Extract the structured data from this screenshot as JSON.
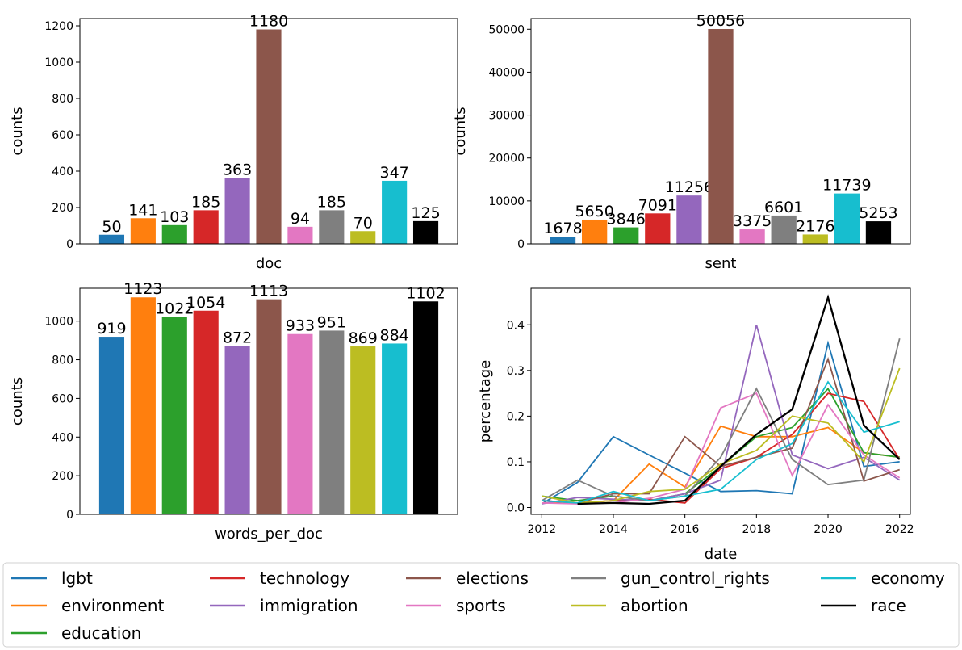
{
  "colors": {
    "lgbt": "#1f77b4",
    "environment": "#ff7f0e",
    "education": "#2ca02c",
    "technology": "#d62728",
    "immigration": "#9467bd",
    "elections": "#8c564b",
    "sports": "#e377c2",
    "gun_control_rights": "#7f7f7f",
    "abortion": "#bcbd22",
    "economy": "#17becf",
    "race": "#000000"
  },
  "chart_data": [
    {
      "type": "bar",
      "xlabel": "doc",
      "ylabel": "counts",
      "ylim": [
        0,
        1240
      ],
      "yticks": [
        0,
        200,
        400,
        600,
        800,
        1000,
        1200
      ],
      "categories": [
        "lgbt",
        "environment",
        "education",
        "technology",
        "immigration",
        "elections",
        "sports",
        "gun_control_rights",
        "abortion",
        "economy",
        "race"
      ],
      "values": [
        50,
        141,
        103,
        185,
        363,
        1180,
        94,
        185,
        70,
        347,
        125
      ],
      "grid": false
    },
    {
      "type": "bar",
      "xlabel": "sent",
      "ylabel": "counts",
      "ylim": [
        0,
        52500
      ],
      "yticks": [
        0,
        10000,
        20000,
        30000,
        40000,
        50000
      ],
      "categories": [
        "lgbt",
        "environment",
        "education",
        "technology",
        "immigration",
        "elections",
        "sports",
        "gun_control_rights",
        "abortion",
        "economy",
        "race"
      ],
      "values": [
        1678,
        5650,
        3846,
        7091,
        11256,
        50056,
        3375,
        6601,
        2176,
        11739,
        5253
      ],
      "grid": false
    },
    {
      "type": "bar",
      "xlabel": "words_per_doc",
      "ylabel": "counts",
      "ylim": [
        0,
        1170
      ],
      "yticks": [
        0,
        200,
        400,
        600,
        800,
        1000
      ],
      "categories": [
        "lgbt",
        "environment",
        "education",
        "technology",
        "immigration",
        "elections",
        "sports",
        "gun_control_rights",
        "abortion",
        "economy",
        "race"
      ],
      "values": [
        919,
        1123,
        1022,
        1054,
        872,
        1113,
        933,
        951,
        869,
        884,
        1102
      ],
      "grid": false
    },
    {
      "type": "line",
      "xlabel": "date",
      "ylabel": "percentage",
      "xlim": [
        2011.7,
        2022.3
      ],
      "ylim": [
        -0.015,
        0.48
      ],
      "xticks": [
        2012,
        2014,
        2016,
        2018,
        2020,
        2022
      ],
      "yticks": [
        0.0,
        0.1,
        0.2,
        0.3,
        0.4
      ],
      "grid": false,
      "series": [
        {
          "name": "lgbt",
          "x": [
            2012,
            2013,
            2014,
            2015,
            2016,
            2017,
            2018,
            2019,
            2020,
            2021,
            2022
          ],
          "y": [
            0.008,
            0.055,
            0.155,
            0.115,
            0.075,
            0.035,
            0.037,
            0.03,
            0.36,
            0.09,
            0.1
          ]
        },
        {
          "name": "environment",
          "x": [
            2012,
            2013,
            2014,
            2015,
            2016,
            2017,
            2018,
            2019,
            2020,
            2021,
            2022
          ],
          "y": [
            0.01,
            0.01,
            0.015,
            0.095,
            0.045,
            0.178,
            0.155,
            0.155,
            0.175,
            0.12,
            0.11
          ]
        },
        {
          "name": "education",
          "x": [
            2012,
            2013,
            2014,
            2015,
            2016,
            2017,
            2018,
            2019,
            2020,
            2021,
            2022
          ],
          "y": [
            0.025,
            0.015,
            0.025,
            0.015,
            0.03,
            0.09,
            0.155,
            0.175,
            0.26,
            0.12,
            0.11
          ]
        },
        {
          "name": "technology",
          "x": [
            2012,
            2013,
            2014,
            2015,
            2016,
            2017,
            2018,
            2019,
            2020,
            2021,
            2022
          ],
          "y": [
            0.015,
            0.01,
            0.015,
            0.018,
            0.01,
            0.085,
            0.11,
            0.16,
            0.25,
            0.232,
            0.105
          ]
        },
        {
          "name": "immigration",
          "x": [
            2012,
            2013,
            2014,
            2015,
            2016,
            2017,
            2018,
            2019,
            2020,
            2021,
            2022
          ],
          "y": [
            0.008,
            0.022,
            0.018,
            0.015,
            0.03,
            0.06,
            0.4,
            0.115,
            0.085,
            0.11,
            0.06
          ]
        },
        {
          "name": "elections",
          "x": [
            2012,
            2013,
            2014,
            2015,
            2016,
            2017,
            2018,
            2019,
            2020,
            2021,
            2022
          ],
          "y": [
            0.015,
            0.01,
            0.03,
            0.03,
            0.155,
            0.09,
            0.11,
            0.13,
            0.325,
            0.058,
            0.083
          ]
        },
        {
          "name": "sports",
          "x": [
            2012,
            2013,
            2014,
            2015,
            2016,
            2017,
            2018,
            2019,
            2020,
            2021,
            2022
          ],
          "y": [
            0.01,
            0.008,
            0.01,
            0.02,
            0.04,
            0.218,
            0.25,
            0.07,
            0.225,
            0.115,
            0.065
          ]
        },
        {
          "name": "gun_control_rights",
          "x": [
            2012,
            2013,
            2014,
            2015,
            2016,
            2017,
            2018,
            2019,
            2020,
            2021,
            2022
          ],
          "y": [
            0.015,
            0.06,
            0.025,
            0.015,
            0.025,
            0.11,
            0.26,
            0.105,
            0.05,
            0.06,
            0.37
          ]
        },
        {
          "name": "abortion",
          "x": [
            2012,
            2013,
            2014,
            2015,
            2016,
            2017,
            2018,
            2019,
            2020,
            2021,
            2022
          ],
          "y": [
            0.025,
            0.01,
            0.015,
            0.035,
            0.04,
            0.095,
            0.125,
            0.2,
            0.185,
            0.1,
            0.305
          ]
        },
        {
          "name": "economy",
          "x": [
            2012,
            2013,
            2014,
            2015,
            2016,
            2017,
            2018,
            2019,
            2020,
            2021,
            2022
          ],
          "y": [
            0.015,
            0.01,
            0.035,
            0.015,
            0.025,
            0.04,
            0.105,
            0.14,
            0.275,
            0.165,
            0.188
          ]
        },
        {
          "name": "race",
          "x": [
            2013,
            2014,
            2015,
            2016,
            2017,
            2018,
            2019,
            2020,
            2021,
            2022
          ],
          "y": [
            0.008,
            0.01,
            0.008,
            0.015,
            0.09,
            0.16,
            0.215,
            0.46,
            0.18,
            0.105
          ]
        }
      ]
    }
  ],
  "legend": {
    "placement": "bottom",
    "entries": [
      "lgbt",
      "technology",
      "elections",
      "gun_control_rights",
      "economy",
      "environment",
      "immigration",
      "sports",
      "abortion",
      "race",
      "education"
    ]
  }
}
